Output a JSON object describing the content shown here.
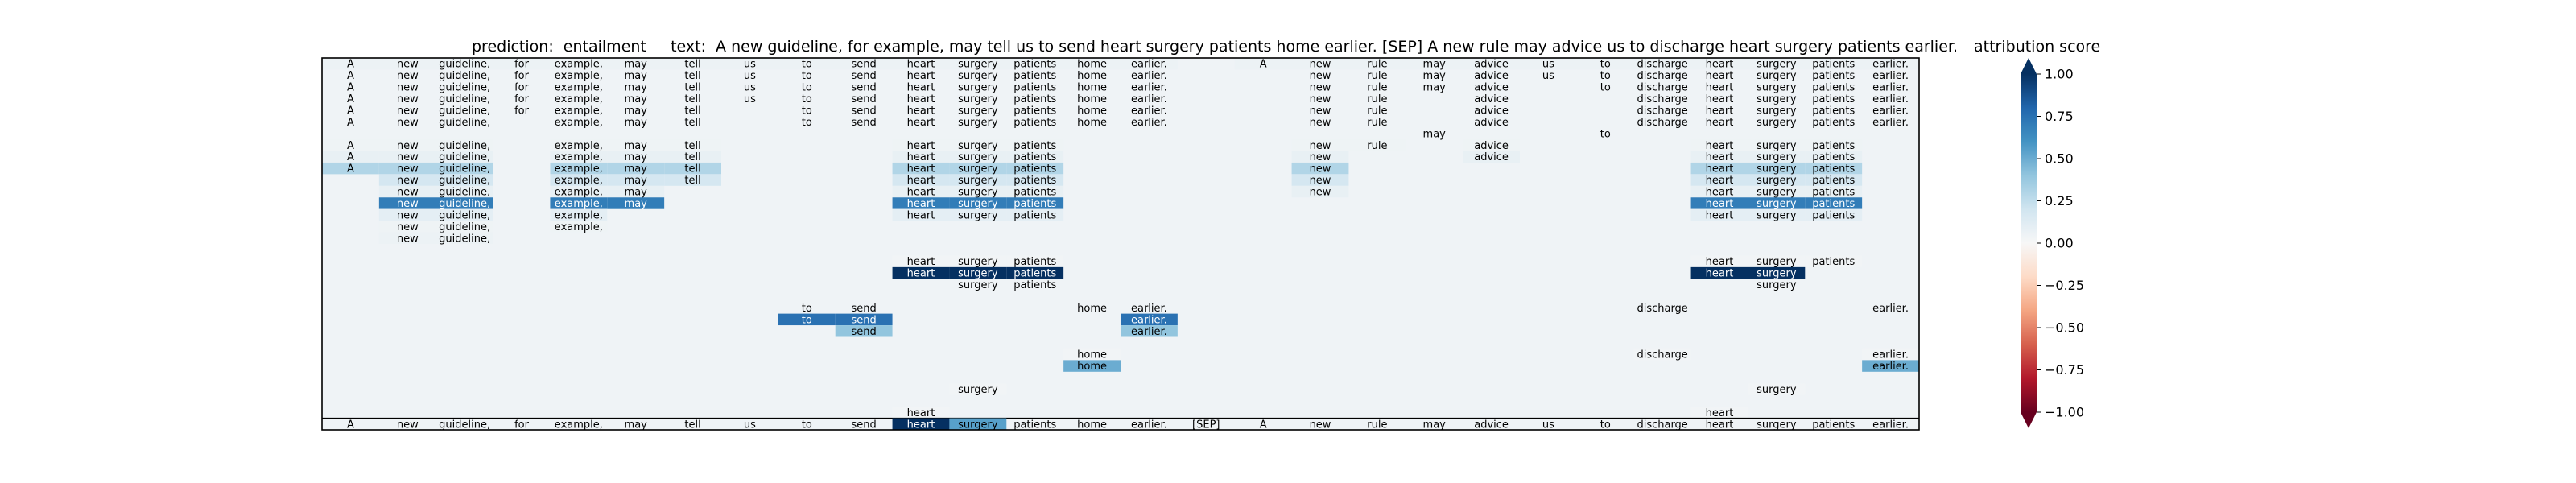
{
  "chart_data": {
    "type": "heatmap",
    "title": "prediction:  entailment     text:  A new guideline, for example, may tell us to send heart surgery patients home earlier. [SEP] A new rule may advice us to discharge heart surgery patients earlier.",
    "tokens": [
      "A",
      "new",
      "guideline,",
      "for",
      "example,",
      "may",
      "tell",
      "us",
      "to",
      "send",
      "heart",
      "surgery",
      "patients",
      "home",
      "earlier.",
      "[SEP]",
      "A",
      "new",
      "rule",
      "may",
      "advice",
      "us",
      "to",
      "discharge",
      "heart",
      "surgery",
      "patients",
      "earlier."
    ],
    "bottom_row_scores": [
      0,
      0,
      0,
      0,
      0,
      0,
      0,
      0,
      0,
      0,
      1.0,
      0.55,
      0,
      0,
      0,
      0,
      0,
      0,
      0,
      0,
      0,
      0,
      0,
      0,
      0,
      0,
      0,
      0
    ],
    "rows": [
      {
        "tokens": [
          0,
          1,
          2,
          3,
          4,
          5,
          6,
          7,
          8,
          9,
          10,
          11,
          12,
          13,
          14,
          16,
          17,
          18,
          19,
          20,
          21,
          22,
          23,
          24,
          25,
          26,
          27
        ],
        "scores": [
          0.06,
          0.06,
          0.06,
          0.06,
          0.06,
          0.06,
          0.06,
          0.06,
          0.06,
          0.06,
          0.06,
          0.06,
          0.06,
          0.06,
          0.06,
          0.06,
          0.06,
          0.06,
          0.06,
          0.06,
          0.06,
          0.06,
          0.06,
          0.06,
          0.06,
          0.06,
          0.06
        ]
      },
      {
        "tokens": [
          0,
          1,
          2,
          3,
          4,
          5,
          6,
          7,
          8,
          9,
          10,
          11,
          12,
          13,
          14,
          17,
          18,
          19,
          20,
          21,
          22,
          23,
          24,
          25,
          26,
          27
        ],
        "scores": [
          0.04,
          0.04,
          0.04,
          0.04,
          0.04,
          0.04,
          0.04,
          0.04,
          0.04,
          0.04,
          0.04,
          0.04,
          0.04,
          0.04,
          0.04,
          0.04,
          0.04,
          0.04,
          0.04,
          0.04,
          0.04,
          0.04,
          0.04,
          0.04,
          0.04,
          0.04
        ]
      },
      {
        "tokens": [
          0,
          1,
          2,
          3,
          4,
          5,
          6,
          7,
          8,
          9,
          10,
          11,
          12,
          13,
          14,
          17,
          18,
          19,
          20,
          22,
          23,
          24,
          25,
          26,
          27
        ],
        "scores": [
          0.04,
          0.04,
          0.04,
          0.04,
          0.04,
          0.04,
          0.04,
          0.04,
          0.04,
          0.04,
          0.04,
          0.04,
          0.04,
          0.04,
          0.04,
          0.04,
          0.04,
          0.04,
          0.04,
          0.04,
          0.04,
          0.04,
          0.04,
          0.04,
          0.04
        ]
      },
      {
        "tokens": [
          0,
          1,
          2,
          3,
          4,
          5,
          6,
          7,
          8,
          9,
          10,
          11,
          12,
          13,
          14,
          17,
          18,
          20,
          23,
          24,
          25,
          26,
          27
        ],
        "scores": [
          0.04,
          0.04,
          0.04,
          0.04,
          0.04,
          0.04,
          0.04,
          0.04,
          0.04,
          0.04,
          0.04,
          0.04,
          0.04,
          0.04,
          0.04,
          0.04,
          0.04,
          0.04,
          0.04,
          0.04,
          0.04,
          0.04,
          0.04
        ]
      },
      {
        "tokens": [
          0,
          1,
          2,
          3,
          4,
          5,
          6,
          8,
          9,
          10,
          11,
          12,
          13,
          14,
          17,
          18,
          20,
          23,
          24,
          25,
          26,
          27
        ],
        "scores": [
          0.04,
          0.04,
          0.04,
          0.04,
          0.04,
          0.04,
          0.04,
          0.04,
          0.04,
          0.04,
          0.04,
          0.04,
          0.04,
          0.04,
          0.04,
          0.04,
          0.04,
          0.04,
          0.04,
          0.04,
          0.04,
          0.04
        ]
      },
      {
        "tokens": [
          0,
          1,
          2,
          4,
          5,
          6,
          8,
          9,
          10,
          11,
          12,
          13,
          14,
          17,
          18,
          20,
          23,
          24,
          25,
          26,
          27
        ],
        "scores": [
          0.04,
          0.04,
          0.04,
          0.04,
          0.04,
          0.04,
          0.04,
          0.04,
          0.04,
          0.04,
          0.04,
          0.04,
          0.04,
          0.04,
          0.04,
          0.04,
          0.04,
          0.04,
          0.04,
          0.04,
          0.04
        ]
      },
      {
        "tokens": [
          19,
          22
        ],
        "scores": [
          0.04,
          0.04
        ]
      },
      {
        "tokens": [
          0,
          1,
          2,
          4,
          5,
          6,
          10,
          11,
          12,
          17,
          18,
          20,
          24,
          25,
          26
        ],
        "scores": [
          0.05,
          0.05,
          0.05,
          0.05,
          0.05,
          0.05,
          0.05,
          0.05,
          0.05,
          0.05,
          0.05,
          0.05,
          0.05,
          0.05,
          0.05
        ]
      },
      {
        "tokens": [
          0,
          1,
          2,
          4,
          5,
          6,
          10,
          11,
          12,
          17,
          20,
          24,
          25,
          26
        ],
        "scores": [
          0.08,
          0.08,
          0.08,
          0.08,
          0.08,
          0.08,
          0.08,
          0.08,
          0.08,
          0.08,
          0.08,
          0.08,
          0.08,
          0.08
        ]
      },
      {
        "tokens": [
          0,
          1,
          2,
          4,
          5,
          6,
          10,
          11,
          12,
          17,
          24,
          25,
          26
        ],
        "scores": [
          0.3,
          0.3,
          0.3,
          0.3,
          0.3,
          0.3,
          0.3,
          0.3,
          0.3,
          0.3,
          0.3,
          0.3,
          0.3
        ]
      },
      {
        "tokens": [
          1,
          2,
          4,
          5,
          6,
          10,
          11,
          12,
          17,
          24,
          25,
          26
        ],
        "scores": [
          0.18,
          0.18,
          0.18,
          0.18,
          0.18,
          0.18,
          0.18,
          0.18,
          0.18,
          0.18,
          0.18,
          0.18
        ]
      },
      {
        "tokens": [
          1,
          2,
          4,
          5,
          10,
          11,
          12,
          17,
          24,
          25,
          26
        ],
        "scores": [
          0.08,
          0.08,
          0.08,
          0.08,
          0.08,
          0.08,
          0.08,
          0.08,
          0.08,
          0.08,
          0.08
        ]
      },
      {
        "tokens": [
          1,
          2,
          4,
          5,
          10,
          11,
          12,
          24,
          25,
          26
        ],
        "scores": [
          0.7,
          0.7,
          0.7,
          0.7,
          0.7,
          0.7,
          0.7,
          0.7,
          0.7,
          0.7
        ]
      },
      {
        "tokens": [
          1,
          2,
          4,
          10,
          11,
          12,
          24,
          25,
          26
        ],
        "scores": [
          0.1,
          0.1,
          0.1,
          0.1,
          0.1,
          0.1,
          0.1,
          0.1,
          0.1
        ]
      },
      {
        "tokens": [
          1,
          2,
          4
        ],
        "scores": [
          0.05,
          0.05,
          0.05
        ]
      },
      {
        "tokens": [
          1,
          2
        ],
        "scores": [
          0.06,
          0.06
        ]
      },
      {
        "tokens": [],
        "scores": []
      },
      {
        "tokens": [
          10,
          11,
          12,
          24,
          25,
          26
        ],
        "scores": [
          0.03,
          0.03,
          0.03,
          0.03,
          0.03,
          0.03
        ]
      },
      {
        "tokens": [
          10,
          11,
          12,
          24,
          25
        ],
        "scores": [
          1.0,
          1.0,
          1.0,
          1.0,
          1.0
        ]
      },
      {
        "tokens": [
          11,
          12,
          25
        ],
        "scores": [
          0.04,
          0.04,
          0.04
        ]
      },
      {
        "tokens": [],
        "scores": []
      },
      {
        "tokens": [
          8,
          9,
          13,
          14,
          23,
          27
        ],
        "scores": [
          0.04,
          0.04,
          0.04,
          0.04,
          0.04,
          0.04
        ]
      },
      {
        "tokens": [
          8,
          9,
          14
        ],
        "scores": [
          0.75,
          0.75,
          0.75
        ]
      },
      {
        "tokens": [
          9,
          14
        ],
        "scores": [
          0.4,
          0.4
        ]
      },
      {
        "tokens": [],
        "scores": []
      },
      {
        "tokens": [
          13,
          23,
          27
        ],
        "scores": [
          0.03,
          0.03,
          0.03
        ]
      },
      {
        "tokens": [
          13,
          27
        ],
        "scores": [
          0.5,
          0.5
        ]
      },
      {
        "tokens": [],
        "scores": []
      },
      {
        "tokens": [
          11,
          25
        ],
        "scores": [
          0.03,
          0.03
        ]
      },
      {
        "tokens": [],
        "scores": []
      },
      {
        "tokens": [
          10,
          24
        ],
        "scores": [
          0.03,
          0.03
        ]
      }
    ],
    "colorbar": {
      "label": "attribution score",
      "range": [
        -1,
        1
      ],
      "colormap": "RdBu",
      "ticks": [
        1.0,
        0.75,
        0.5,
        0.25,
        0.0,
        -0.25,
        -0.5,
        -0.75,
        -1.0
      ],
      "tick_labels": [
        "1.00",
        "0.75",
        "0.50",
        "0.25",
        "0.00",
        "−0.25",
        "−0.50",
        "−0.75",
        "−1.00"
      ]
    }
  }
}
